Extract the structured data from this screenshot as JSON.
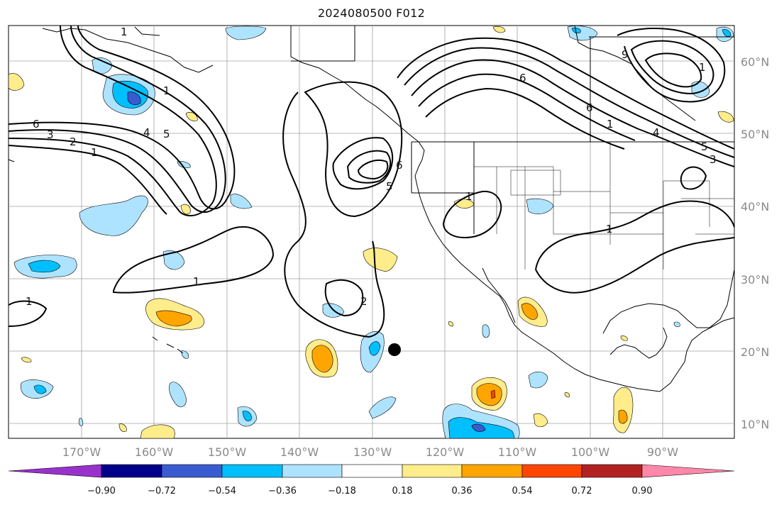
{
  "title": "2024080500 F012",
  "colors": {
    "neg_090": "#9932cc",
    "neg_072": "#00008b",
    "neg_054": "#3a5bd0",
    "neg_036": "#00bfff",
    "neg_018": "#aee3ff",
    "neutral": "#ffffff",
    "pos_018": "#ffec8b",
    "pos_036": "#ffa500",
    "pos_054": "#ff4500",
    "pos_072": "#b22222",
    "pos_090": "#ff88aa",
    "land_line": "#000000",
    "grid": "#999999"
  },
  "axes": {
    "lat_labels": [
      "60°N",
      "50°N",
      "40°N",
      "30°N",
      "20°N",
      "10°N"
    ],
    "lon_labels": [
      "170°W",
      "160°W",
      "150°W",
      "140°W",
      "130°W",
      "120°W",
      "110°W",
      "100°W",
      "90°W"
    ]
  },
  "colorbar": {
    "ticks": [
      "−0.90",
      "−0.72",
      "−0.54",
      "−0.36",
      "−0.18",
      "0.18",
      "0.36",
      "0.54",
      "0.72",
      "0.90"
    ]
  },
  "contour_labels": [
    "1",
    "1",
    "2",
    "3",
    "4",
    "5",
    "6",
    "1",
    "1",
    "1",
    "2",
    "5",
    "6",
    "1",
    "1",
    "6",
    "4",
    "5",
    "3",
    "1",
    "1",
    "6",
    "9"
  ]
}
